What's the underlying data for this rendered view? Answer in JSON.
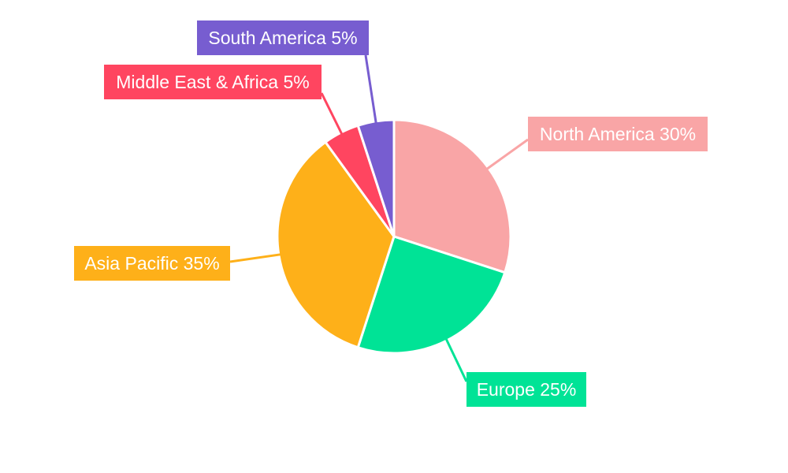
{
  "chart_data": {
    "type": "pie",
    "title": "",
    "categories": [
      "North America",
      "Europe",
      "Asia Pacific",
      "Middle East & Africa",
      "South America"
    ],
    "values": [
      30,
      25,
      35,
      5,
      5
    ],
    "labels": [
      "North America 30%",
      "Europe 25%",
      "Asia Pacific 35%",
      "Middle East & Africa 5%",
      "South America 5%"
    ],
    "colors": [
      "#F9A5A6",
      "#00E396",
      "#FEB019",
      "#FF4560",
      "#775DD0"
    ],
    "start_angle": "top, clockwise",
    "legend": "none (outside callout labels)"
  }
}
